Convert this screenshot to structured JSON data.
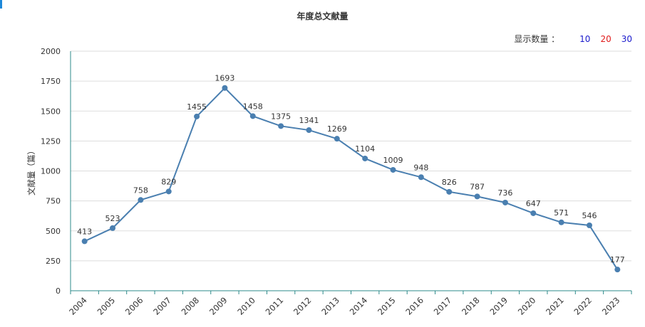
{
  "title": "年度总文献量",
  "display_count": {
    "label": "显示数量 ：",
    "options": [
      {
        "label": "10",
        "color": "#1a1acc"
      },
      {
        "label": "20",
        "color": "#e01a1a"
      },
      {
        "label": "30",
        "color": "#1a1acc"
      }
    ]
  },
  "chart_data": {
    "type": "line",
    "title": "年度总文献量",
    "xlabel": "",
    "ylabel": "文献量（篇）",
    "x": [
      "2004",
      "2005",
      "2006",
      "2007",
      "2008",
      "2009",
      "2010",
      "2011",
      "2012",
      "2013",
      "2014",
      "2015",
      "2016",
      "2017",
      "2018",
      "2019",
      "2020",
      "2021",
      "2022",
      "2023"
    ],
    "series": [
      {
        "values": [
          413,
          523,
          758,
          829,
          1455,
          1693,
          1458,
          1375,
          1341,
          1269,
          1104,
          1009,
          948,
          826,
          787,
          736,
          647,
          571,
          546,
          177
        ]
      }
    ],
    "ylim": [
      0,
      2000
    ],
    "yticks": [
      0,
      250,
      500,
      750,
      1000,
      1250,
      1500,
      1750,
      2000
    ],
    "grid": true,
    "line_color": "#4a7fb0",
    "axis_color": "#2e8b8b"
  }
}
